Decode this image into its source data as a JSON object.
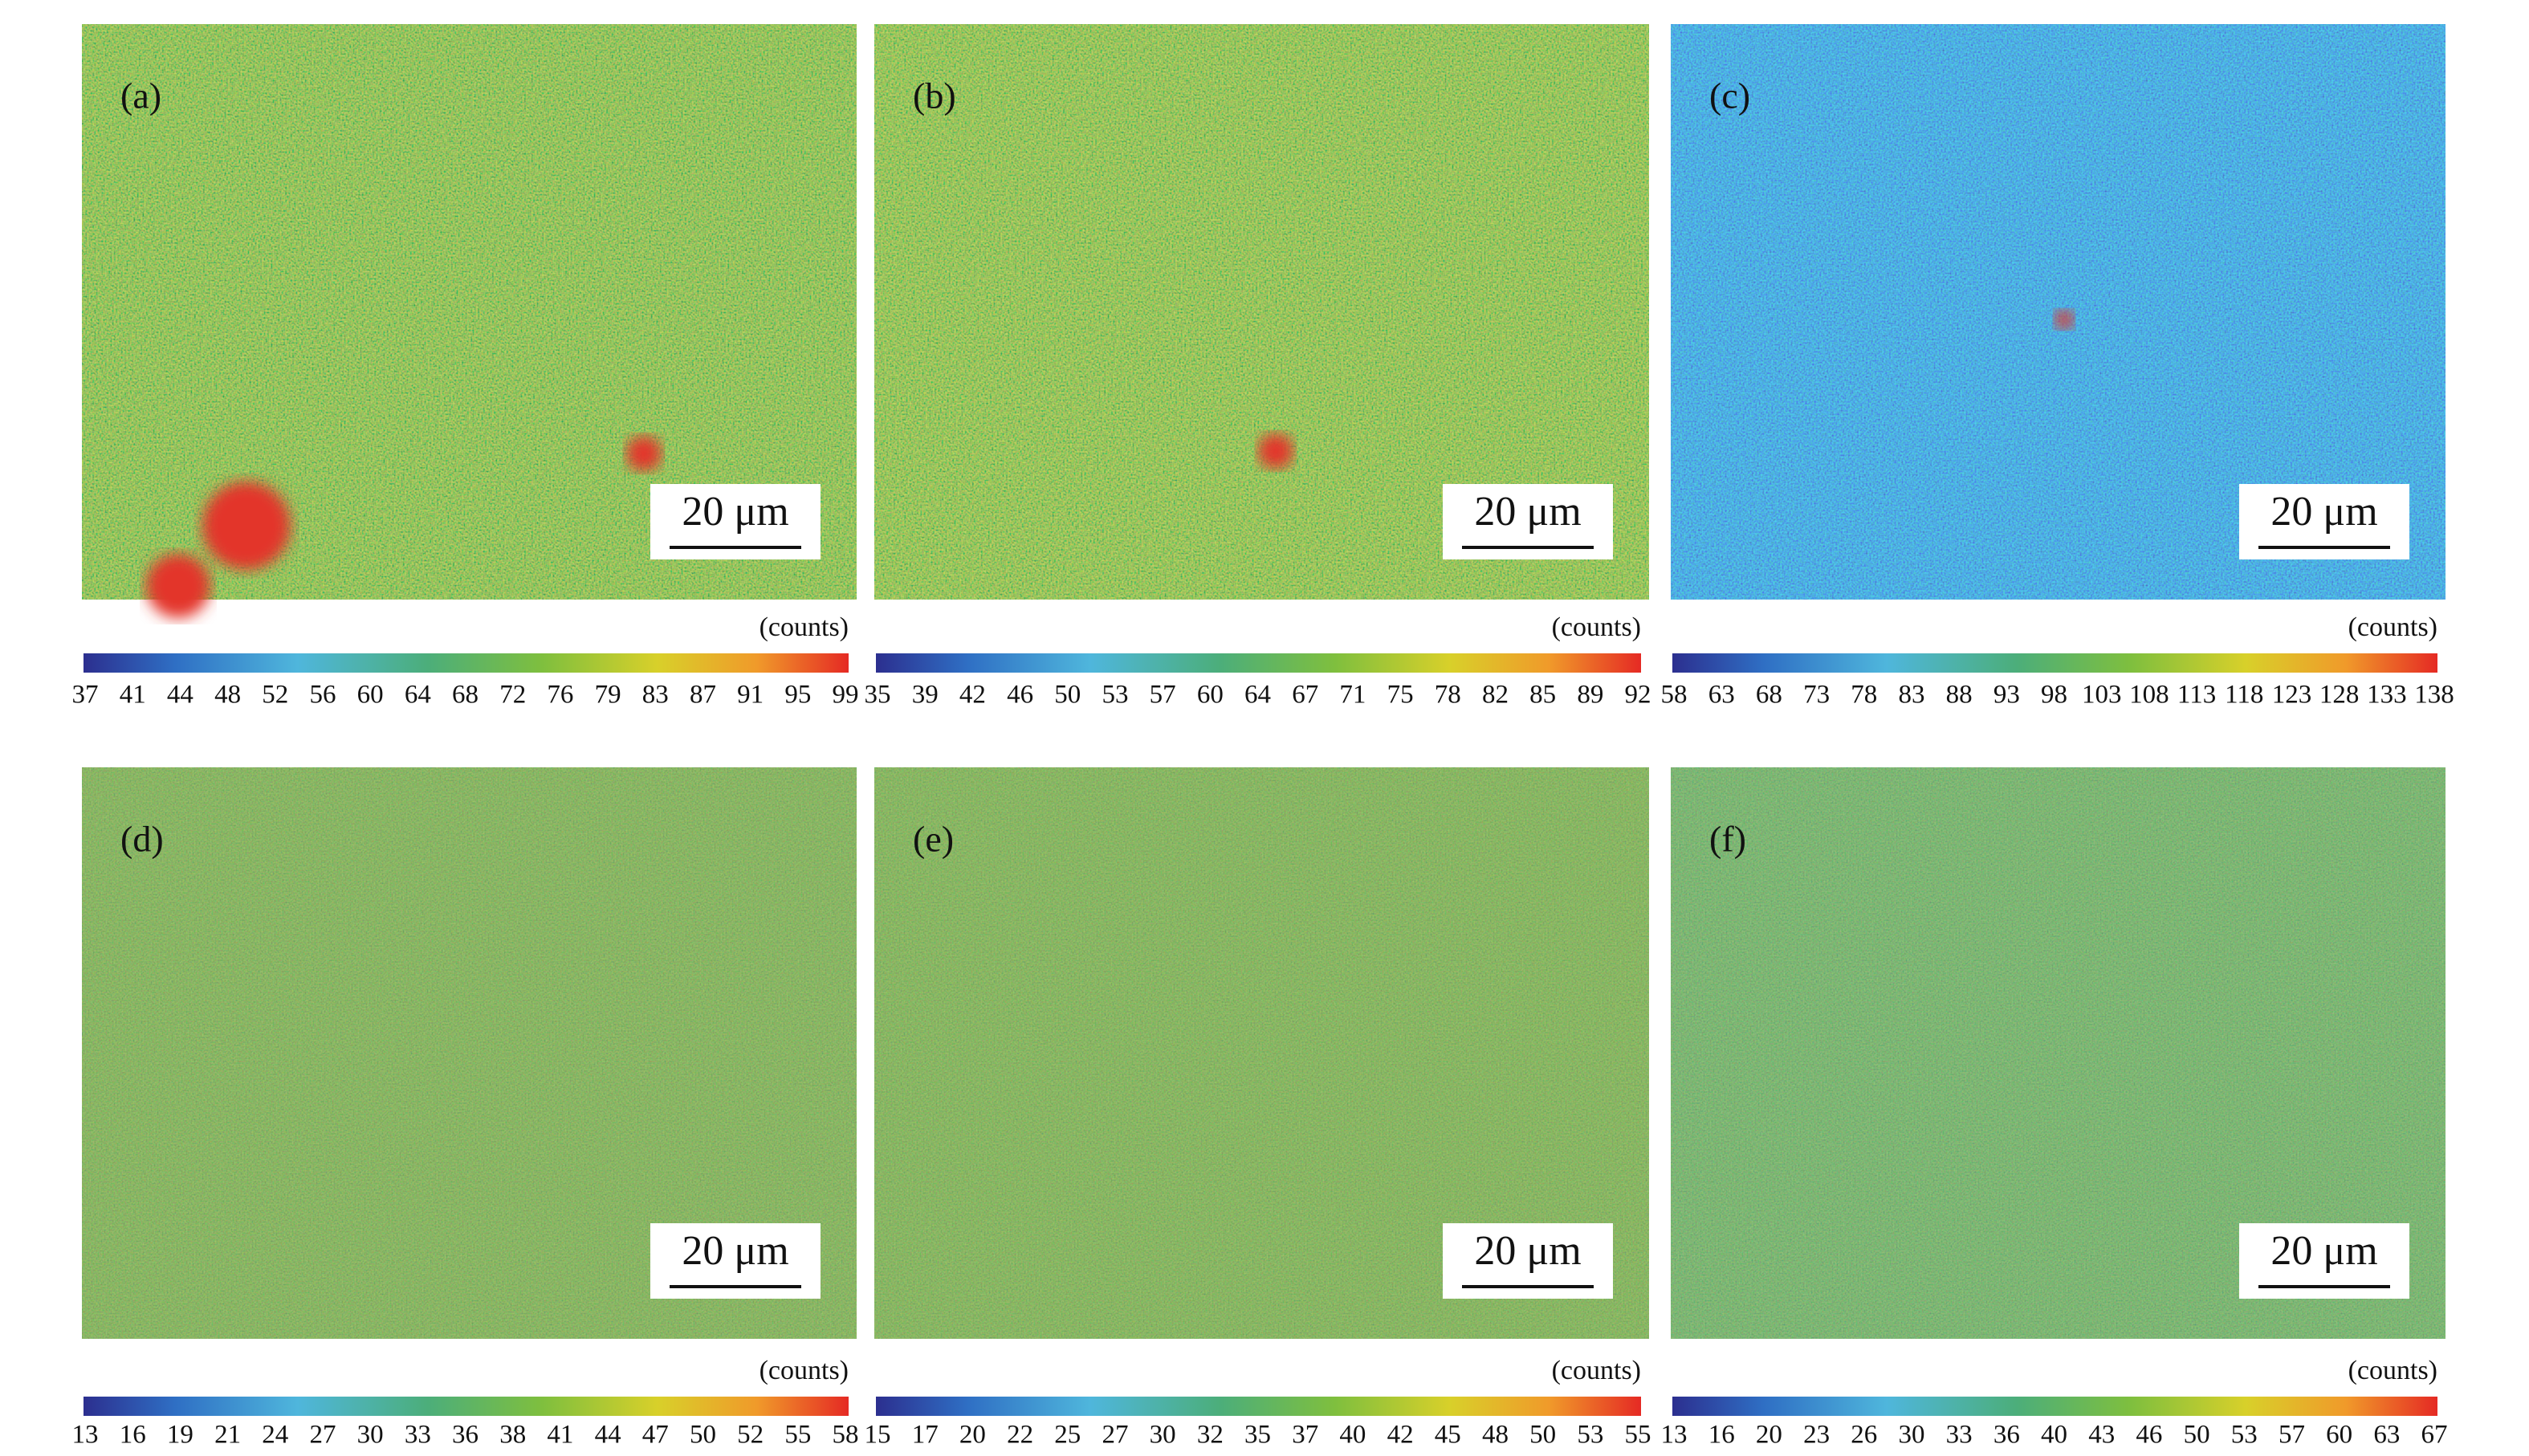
{
  "panels": [
    {
      "label": "(a)",
      "scale_bar": "20 μm",
      "unit": "(counts)",
      "ticks": [
        37,
        41,
        44,
        48,
        52,
        56,
        60,
        64,
        68,
        72,
        76,
        79,
        83,
        87,
        91,
        95,
        99
      ]
    },
    {
      "label": "(b)",
      "scale_bar": "20 μm",
      "unit": "(counts)",
      "ticks": [
        35,
        39,
        42,
        46,
        50,
        53,
        57,
        60,
        64,
        67,
        71,
        75,
        78,
        82,
        85,
        89,
        92
      ]
    },
    {
      "label": "(c)",
      "scale_bar": "20 μm",
      "unit": "(counts)",
      "ticks": [
        58,
        63,
        68,
        73,
        78,
        83,
        88,
        93,
        98,
        103,
        108,
        113,
        118,
        123,
        128,
        133,
        138
      ]
    },
    {
      "label": "(d)",
      "scale_bar": "20 μm",
      "unit": "(counts)",
      "ticks": [
        13,
        16,
        19,
        21,
        24,
        27,
        30,
        33,
        36,
        38,
        41,
        44,
        47,
        50,
        52,
        55,
        58
      ]
    },
    {
      "label": "(e)",
      "scale_bar": "20 μm",
      "unit": "(counts)",
      "ticks": [
        15,
        17,
        20,
        22,
        25,
        27,
        30,
        32,
        35,
        37,
        40,
        42,
        45,
        48,
        50,
        53,
        55
      ]
    },
    {
      "label": "(f)",
      "scale_bar": "20 μm",
      "unit": "(counts)",
      "ticks": [
        13,
        16,
        20,
        23,
        26,
        30,
        33,
        36,
        40,
        43,
        46,
        50,
        53,
        57,
        60,
        63,
        67
      ]
    }
  ]
}
